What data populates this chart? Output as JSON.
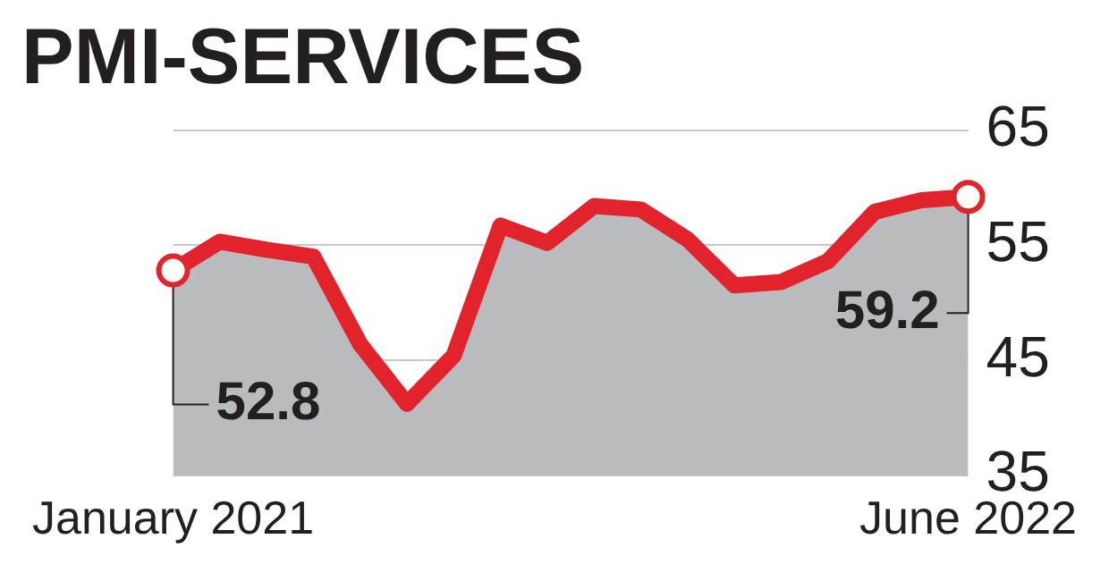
{
  "chart_data": {
    "type": "area",
    "title": "PMI-SERVICES",
    "categories": [
      "January 2021",
      null,
      null,
      null,
      null,
      null,
      null,
      null,
      null,
      null,
      null,
      null,
      null,
      null,
      null,
      null,
      null,
      "June 2022"
    ],
    "series": [
      {
        "color": "#e3232b",
        "values": [
          52.8,
          55.3,
          54.6,
          54.0,
          46.4,
          41.2,
          45.4,
          56.7,
          55.2,
          58.4,
          58.1,
          55.5,
          51.5,
          51.8,
          53.6,
          57.9,
          58.9,
          59.2
        ]
      }
    ],
    "ylim": [
      35,
      65
    ],
    "yticks": [
      35,
      45,
      55,
      65
    ],
    "grid": "y",
    "legend": false,
    "annotations": [
      {
        "text": "52.8",
        "x": "January 2021",
        "y": 52.8
      },
      {
        "text": "59.2",
        "x": "June 2022",
        "y": 59.2
      }
    ]
  }
}
